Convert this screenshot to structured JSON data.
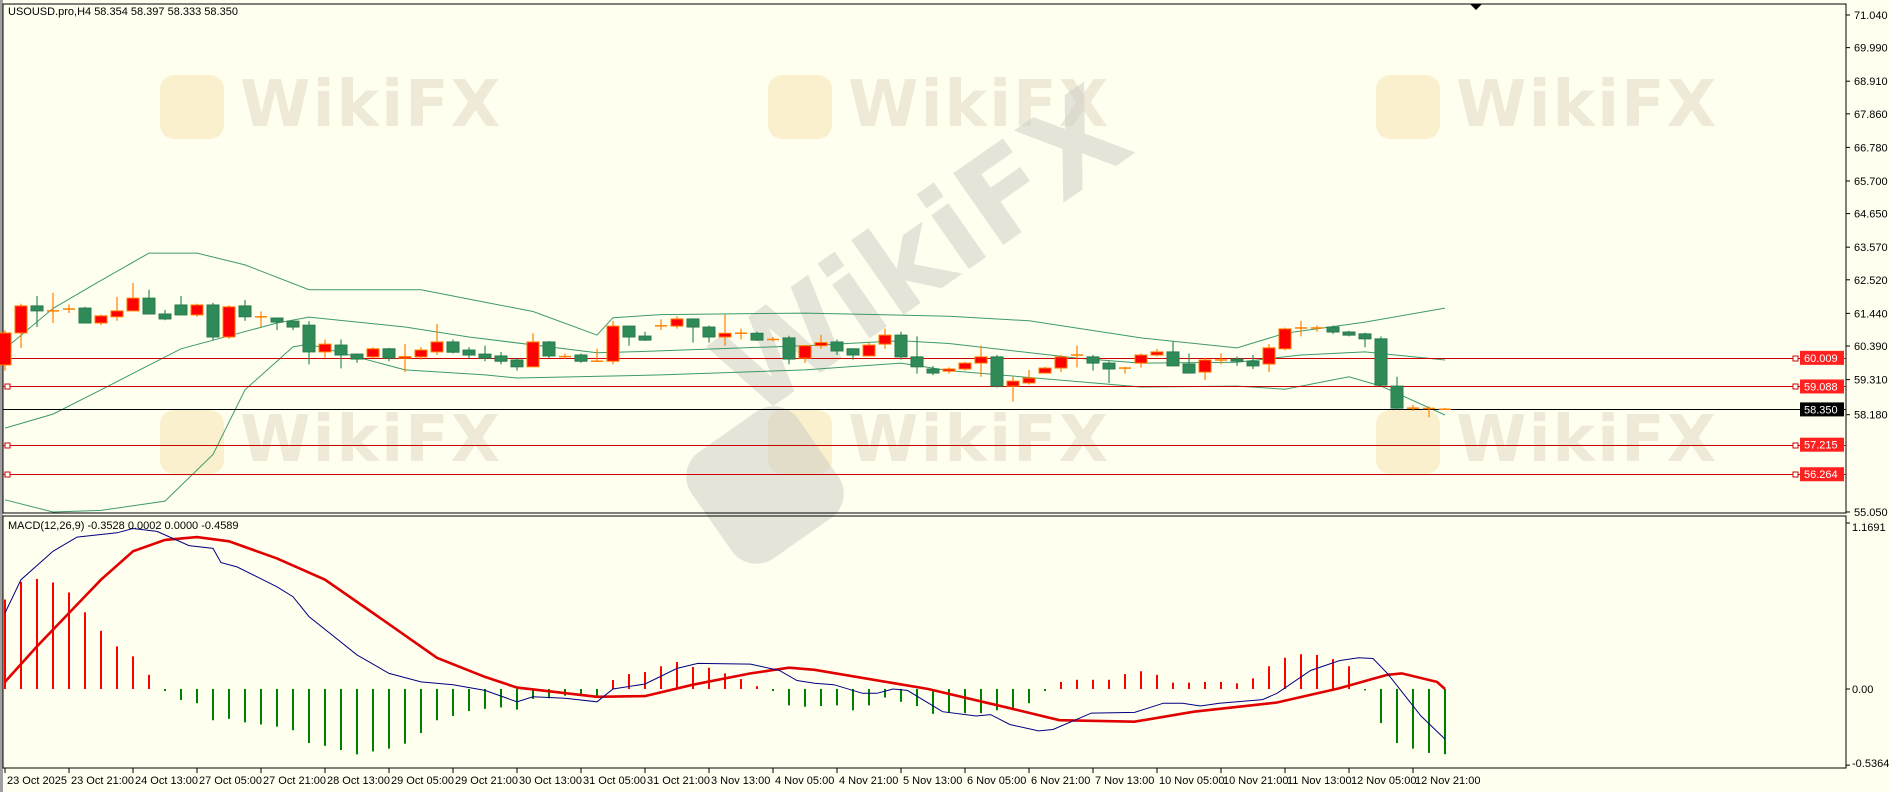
{
  "header": {
    "symbol_info": "USOUSD.pro,H4  58.354 58.397 58.333 58.350"
  },
  "watermark": {
    "text": "WikiFX"
  },
  "macd": {
    "label": "MACD(12,26,9) -0.3528 0.0002 0.0000 -0.4589",
    "axis_ticks": [
      "1.1691",
      "0.00",
      "-0.5364"
    ],
    "axis_values": [
      1.1691,
      0,
      -0.5364
    ],
    "colors": {
      "histogram_up": "#ff0000",
      "histogram_down": "#008000",
      "macd_line": "#000080",
      "signal_line": "#e00000"
    },
    "histogram": [
      0.63,
      0.755,
      0.775,
      0.75,
      0.68,
      0.54,
      0.41,
      0.3,
      0.23,
      0.1,
      -0.005,
      -0.078,
      -0.1,
      -0.22,
      -0.21,
      -0.235,
      -0.25,
      -0.265,
      -0.29,
      -0.38,
      -0.4,
      -0.43,
      -0.46,
      -0.44,
      -0.42,
      -0.385,
      -0.31,
      -0.22,
      -0.19,
      -0.155,
      -0.14,
      -0.13,
      -0.145,
      -0.07,
      -0.065,
      -0.047,
      -0.05,
      -0.06,
      0.063,
      0.105,
      0.12,
      0.16,
      0.19,
      0.155,
      0.15,
      0.11,
      0.07,
      0.02,
      -0.005,
      -0.115,
      -0.125,
      -0.12,
      -0.115,
      -0.15,
      -0.115,
      -0.06,
      -0.09,
      -0.12,
      -0.175,
      -0.165,
      -0.17,
      -0.17,
      -0.15,
      -0.15,
      -0.1,
      -0.005,
      0.05,
      0.065,
      0.065,
      0.065,
      0.105,
      0.125,
      0.1,
      0.045,
      0.045,
      0.05,
      0.05,
      0.04,
      0.075,
      0.16,
      0.22,
      0.245,
      0.24,
      0.21,
      0.16,
      -0.01,
      -0.24,
      -0.38,
      -0.42,
      -0.45,
      -0.4589
    ],
    "macd_line": [
      [
        0,
        0.535
      ],
      [
        1,
        0.77
      ],
      [
        3,
        0.97
      ],
      [
        4.5,
        1.07
      ],
      [
        7,
        1.1
      ],
      [
        8,
        1.13
      ],
      [
        9.5,
        1.11
      ],
      [
        11.5,
        1.01
      ],
      [
        13,
        0.99
      ],
      [
        13.5,
        0.89
      ],
      [
        14.5,
        0.86
      ],
      [
        17,
        0.72
      ],
      [
        18,
        0.65
      ],
      [
        19,
        0.51
      ],
      [
        22,
        0.24
      ],
      [
        24,
        0.11
      ],
      [
        26,
        0.05
      ],
      [
        28,
        0.03
      ],
      [
        30,
        -0.01
      ],
      [
        32,
        -0.09
      ],
      [
        33,
        -0.055
      ],
      [
        35,
        -0.065
      ],
      [
        37,
        -0.09
      ],
      [
        38,
        0.0
      ],
      [
        40,
        0.035
      ],
      [
        42,
        0.145
      ],
      [
        43.3,
        0.18
      ],
      [
        46.6,
        0.175
      ],
      [
        48.4,
        0.13
      ],
      [
        49.5,
        0.06
      ],
      [
        50.6,
        0.04
      ],
      [
        51.8,
        0.03
      ],
      [
        53.6,
        -0.03
      ],
      [
        54.5,
        -0.03
      ],
      [
        55.5,
        0.0
      ],
      [
        56.4,
        -0.01
      ],
      [
        58.6,
        -0.16
      ],
      [
        60.7,
        -0.19
      ],
      [
        61.6,
        -0.18
      ],
      [
        62.8,
        -0.25
      ],
      [
        64.6,
        -0.295
      ],
      [
        65.5,
        -0.285
      ],
      [
        67.9,
        -0.17
      ],
      [
        70.6,
        -0.165
      ],
      [
        72.4,
        -0.1
      ],
      [
        73.6,
        -0.1
      ],
      [
        74.7,
        -0.12
      ],
      [
        75.9,
        -0.1
      ],
      [
        78.6,
        -0.075
      ],
      [
        79.5,
        -0.03
      ],
      [
        81.6,
        0.13
      ],
      [
        83.4,
        0.2
      ],
      [
        84.6,
        0.22
      ],
      [
        85.5,
        0.215
      ],
      [
        86.4,
        0.11
      ],
      [
        88.5,
        -0.19
      ],
      [
        90,
        -0.3528
      ]
    ],
    "signal_line": [
      [
        0,
        0.05
      ],
      [
        2,
        0.3
      ],
      [
        4,
        0.535
      ],
      [
        6,
        0.77
      ],
      [
        8,
        0.97
      ],
      [
        10,
        1.05
      ],
      [
        12,
        1.07
      ],
      [
        14,
        1.04
      ],
      [
        17,
        0.92
      ],
      [
        20,
        0.77
      ],
      [
        23,
        0.535
      ],
      [
        27,
        0.22
      ],
      [
        30,
        0.085
      ],
      [
        32,
        0.01
      ],
      [
        37,
        -0.055
      ],
      [
        40,
        -0.05
      ],
      [
        43,
        0.03
      ],
      [
        46.6,
        0.11
      ],
      [
        49,
        0.15
      ],
      [
        50.6,
        0.135
      ],
      [
        57.7,
        0.0
      ],
      [
        62.8,
        -0.135
      ],
      [
        65.9,
        -0.22
      ],
      [
        70.6,
        -0.23
      ],
      [
        74.3,
        -0.16
      ],
      [
        79.5,
        -0.095
      ],
      [
        83.4,
        0.005
      ],
      [
        86.4,
        0.1
      ],
      [
        87.3,
        0.11
      ],
      [
        89.5,
        0.05
      ],
      [
        90,
        0.0002
      ]
    ]
  },
  "price_axis": {
    "ticks": [
      "71.040",
      "69.990",
      "68.910",
      "67.860",
      "66.780",
      "65.700",
      "64.650",
      "63.570",
      "62.520",
      "61.440",
      "60.390",
      "59.310",
      "58.180",
      "55.050"
    ],
    "tick_values": [
      71.04,
      69.99,
      68.91,
      67.86,
      66.78,
      65.7,
      64.65,
      63.57,
      62.52,
      61.44,
      60.39,
      59.31,
      58.18,
      55.05
    ],
    "range": [
      55.05,
      71.04
    ]
  },
  "levels": [
    {
      "label": "60.009",
      "value": 60.009,
      "color": "#cc0000",
      "badge": "#ff2020"
    },
    {
      "label": "59.088",
      "value": 59.088,
      "color": "#cc0000",
      "badge": "#ff2020"
    },
    {
      "label": "58.350",
      "value": 58.35,
      "color": "#000000",
      "badge": "#000000"
    },
    {
      "label": "57.215",
      "value": 57.215,
      "color": "#cc0000",
      "badge": "#ff2020"
    },
    {
      "label": "56.264",
      "value": 56.264,
      "color": "#cc0000",
      "badge": "#ff2020"
    }
  ],
  "time_axis": {
    "labels": [
      "23 Oct 2025",
      "23 Oct 21:00",
      "24 Oct 13:00",
      "27 Oct 05:00",
      "27 Oct 21:00",
      "28 Oct 13:00",
      "29 Oct 05:00",
      "29 Oct 21:00",
      "30 Oct 13:00",
      "31 Oct 05:00",
      "31 Oct 21:00",
      "3 Nov 13:00",
      "4 Nov 05:00",
      "4 Nov 21:00",
      "5 Nov 13:00",
      "6 Nov 05:00",
      "6 Nov 21:00",
      "7 Nov 13:00",
      "10 Nov 05:00",
      "10 Nov 21:00",
      "11 Nov 13:00",
      "12 Nov 05:00",
      "12 Nov 21:00"
    ],
    "bars_per_label": 4
  },
  "chart_data": {
    "type": "candlestick",
    "symbol": "USOUSD.pro",
    "timeframe": "H4",
    "colors": {
      "bull": "#ff0000",
      "bear": "#2e8b57",
      "doji": "#ff7f00",
      "bands": "#3c9a6a",
      "background": "#fffff0"
    },
    "ohlc": [
      [
        59.78,
        60.9,
        59.6,
        60.81
      ],
      [
        60.81,
        61.75,
        60.33,
        61.68
      ],
      [
        61.68,
        62.0,
        61.0,
        61.52
      ],
      [
        61.52,
        62.1,
        61.13,
        61.53
      ],
      [
        61.58,
        61.73,
        61.45,
        61.58
      ],
      [
        61.61,
        61.65,
        61.13,
        61.13
      ],
      [
        61.13,
        61.4,
        61.06,
        61.36
      ],
      [
        61.33,
        61.97,
        61.2,
        61.52
      ],
      [
        61.52,
        62.42,
        61.5,
        61.93
      ],
      [
        61.93,
        62.2,
        61.4,
        61.42
      ],
      [
        61.42,
        61.55,
        61.22,
        61.26
      ],
      [
        61.71,
        62.0,
        61.39,
        61.39
      ],
      [
        61.39,
        61.75,
        61.33,
        61.71
      ],
      [
        61.71,
        61.78,
        60.58,
        60.68
      ],
      [
        60.68,
        61.7,
        60.62,
        61.65
      ],
      [
        61.68,
        61.87,
        61.2,
        61.33
      ],
      [
        61.33,
        61.5,
        61.0,
        61.34
      ],
      [
        61.29,
        61.3,
        60.9,
        61.16
      ],
      [
        61.19,
        61.2,
        60.9,
        61.0
      ],
      [
        61.06,
        61.19,
        59.8,
        60.2
      ],
      [
        60.2,
        60.6,
        60.0,
        60.45
      ],
      [
        60.42,
        60.6,
        59.67,
        60.1
      ],
      [
        60.13,
        60.15,
        59.85,
        59.97
      ],
      [
        60.04,
        60.35,
        60.0,
        60.3
      ],
      [
        60.3,
        60.33,
        59.9,
        60.0
      ],
      [
        60.0,
        60.45,
        59.55,
        60.05
      ],
      [
        60.04,
        60.35,
        59.95,
        60.26
      ],
      [
        60.2,
        61.1,
        60.1,
        60.52
      ],
      [
        60.52,
        60.6,
        60.15,
        60.19
      ],
      [
        60.26,
        60.35,
        60.0,
        60.1
      ],
      [
        60.13,
        60.4,
        59.9,
        60.0
      ],
      [
        60.07,
        60.2,
        59.8,
        59.9
      ],
      [
        59.94,
        60.0,
        59.6,
        59.72
      ],
      [
        59.72,
        60.8,
        59.7,
        60.52
      ],
      [
        60.52,
        60.55,
        60.0,
        60.07
      ],
      [
        60.05,
        60.15,
        59.98,
        60.07
      ],
      [
        60.1,
        60.15,
        59.85,
        59.9
      ],
      [
        59.9,
        60.3,
        59.88,
        59.91
      ],
      [
        59.9,
        61.2,
        59.8,
        61.03
      ],
      [
        61.03,
        61.05,
        60.4,
        60.68
      ],
      [
        60.71,
        60.85,
        60.55,
        60.58
      ],
      [
        61.04,
        61.25,
        60.9,
        61.06
      ],
      [
        61.03,
        61.35,
        60.95,
        61.26
      ],
      [
        61.26,
        61.28,
        60.5,
        61.0
      ],
      [
        61.0,
        61.05,
        60.5,
        60.68
      ],
      [
        60.68,
        61.4,
        60.4,
        60.8
      ],
      [
        60.8,
        60.95,
        60.6,
        60.78
      ],
      [
        60.8,
        60.85,
        60.55,
        60.58
      ],
      [
        60.6,
        60.68,
        60.55,
        60.62
      ],
      [
        60.65,
        60.72,
        59.8,
        59.97
      ],
      [
        60.0,
        60.42,
        59.85,
        60.4
      ],
      [
        60.4,
        60.75,
        60.3,
        60.5
      ],
      [
        60.52,
        60.6,
        60.1,
        60.23
      ],
      [
        60.3,
        60.32,
        59.95,
        60.1
      ],
      [
        60.07,
        60.5,
        60.05,
        60.42
      ],
      [
        60.45,
        60.95,
        60.3,
        60.74
      ],
      [
        60.74,
        60.85,
        59.95,
        60.04
      ],
      [
        60.04,
        60.7,
        59.5,
        59.72
      ],
      [
        59.65,
        59.75,
        59.45,
        59.52
      ],
      [
        59.58,
        59.7,
        59.5,
        59.65
      ],
      [
        59.65,
        59.88,
        59.6,
        59.84
      ],
      [
        59.84,
        60.4,
        59.4,
        60.04
      ],
      [
        60.04,
        60.1,
        59.05,
        59.1
      ],
      [
        59.1,
        59.4,
        58.6,
        59.26
      ],
      [
        59.2,
        59.62,
        59.15,
        59.36
      ],
      [
        59.52,
        59.72,
        59.5,
        59.68
      ],
      [
        59.68,
        60.1,
        59.55,
        60.04
      ],
      [
        60.1,
        60.4,
        59.7,
        60.11
      ],
      [
        60.04,
        60.1,
        59.6,
        59.84
      ],
      [
        59.84,
        59.9,
        59.2,
        59.65
      ],
      [
        59.68,
        59.72,
        59.5,
        59.67
      ],
      [
        59.84,
        60.15,
        59.7,
        60.1
      ],
      [
        60.1,
        60.3,
        60.05,
        60.2
      ],
      [
        60.2,
        60.55,
        59.75,
        59.75
      ],
      [
        59.81,
        60.15,
        59.5,
        59.52
      ],
      [
        59.55,
        60.0,
        59.3,
        59.94
      ],
      [
        59.94,
        60.15,
        59.8,
        59.95
      ],
      [
        59.97,
        60.05,
        59.75,
        59.9
      ],
      [
        59.9,
        60.1,
        59.65,
        59.75
      ],
      [
        59.81,
        60.45,
        59.55,
        60.33
      ],
      [
        60.3,
        60.98,
        60.25,
        60.94
      ],
      [
        60.97,
        61.2,
        60.7,
        60.98
      ],
      [
        60.97,
        61.05,
        60.85,
        60.96
      ],
      [
        61.0,
        61.05,
        60.78,
        60.84
      ],
      [
        60.84,
        60.88,
        60.7,
        60.74
      ],
      [
        60.78,
        60.82,
        60.35,
        60.62
      ],
      [
        60.62,
        60.7,
        59.1,
        59.13
      ],
      [
        59.1,
        59.4,
        58.35,
        58.39
      ],
      [
        58.39,
        58.5,
        58.3,
        58.4
      ],
      [
        58.38,
        58.45,
        58.1,
        58.37
      ],
      [
        58.354,
        58.397,
        58.333,
        58.35
      ]
    ],
    "bollinger": {
      "upper": [
        [
          0,
          60.3
        ],
        [
          3,
          61.6
        ],
        [
          6,
          62.5
        ],
        [
          9,
          63.38
        ],
        [
          12,
          63.38
        ],
        [
          15,
          63.0
        ],
        [
          19,
          62.2
        ],
        [
          22,
          62.2
        ],
        [
          26,
          62.2
        ],
        [
          30,
          61.8
        ],
        [
          33,
          61.5
        ],
        [
          37,
          60.74
        ],
        [
          38,
          61.3
        ],
        [
          41,
          61.4
        ],
        [
          50,
          61.45
        ],
        [
          59,
          61.35
        ],
        [
          64,
          61.2
        ],
        [
          71,
          60.65
        ],
        [
          77,
          60.33
        ],
        [
          80,
          60.8
        ],
        [
          85,
          61.16
        ],
        [
          90,
          61.61
        ]
      ],
      "middle": [
        [
          0,
          57.75
        ],
        [
          3,
          58.2
        ],
        [
          6,
          58.98
        ],
        [
          11,
          60.3
        ],
        [
          17,
          61.13
        ],
        [
          19,
          61.32
        ],
        [
          25,
          61.0
        ],
        [
          29,
          60.68
        ],
        [
          37,
          60.17
        ],
        [
          39,
          60.2
        ],
        [
          50,
          60.4
        ],
        [
          56,
          60.56
        ],
        [
          59,
          60.47
        ],
        [
          67,
          60.0
        ],
        [
          71,
          59.84
        ],
        [
          77,
          59.87
        ],
        [
          81,
          60.1
        ],
        [
          85,
          60.2
        ],
        [
          90,
          59.94
        ]
      ],
      "lower": [
        [
          0,
          55.44
        ],
        [
          3,
          55.05
        ],
        [
          6,
          55.1
        ],
        [
          10,
          55.4
        ],
        [
          13,
          56.9
        ],
        [
          15,
          58.98
        ],
        [
          18,
          60.36
        ],
        [
          19,
          60.45
        ],
        [
          25,
          59.62
        ],
        [
          30,
          59.46
        ],
        [
          32,
          59.36
        ],
        [
          41,
          59.46
        ],
        [
          50,
          59.62
        ],
        [
          56,
          59.84
        ],
        [
          59,
          59.6
        ],
        [
          71,
          59.07
        ],
        [
          77,
          59.1
        ],
        [
          80,
          59.0
        ],
        [
          84,
          59.4
        ],
        [
          86,
          59.1
        ],
        [
          90,
          58.17
        ]
      ]
    }
  }
}
